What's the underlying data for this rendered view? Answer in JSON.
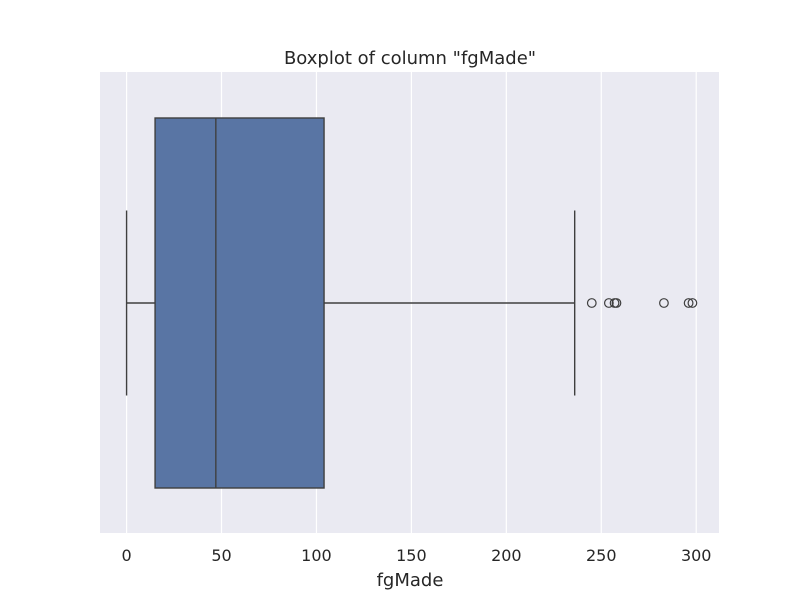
{
  "chart_data": {
    "type": "box",
    "title": "Boxplot of column \"fgMade\"",
    "xlabel": "fgMade",
    "ylabel": "",
    "orientation": "horizontal",
    "xlim": [
      -14,
      312
    ],
    "x_ticks": [
      0,
      50,
      100,
      150,
      200,
      250,
      300
    ],
    "x_tick_labels": [
      "0",
      "50",
      "100",
      "150",
      "200",
      "250",
      "300"
    ],
    "grid": true,
    "box": {
      "whisker_low": 0,
      "q1": 15,
      "median": 47,
      "q3": 104,
      "whisker_high": 236
    },
    "outliers": [
      245,
      254,
      257,
      258,
      283,
      296,
      298
    ],
    "colors": {
      "background": "#eaeaf2",
      "grid": "#ffffff",
      "box_fill": "#5975a4",
      "line": "#3f3f3f",
      "text": "#262626"
    }
  }
}
